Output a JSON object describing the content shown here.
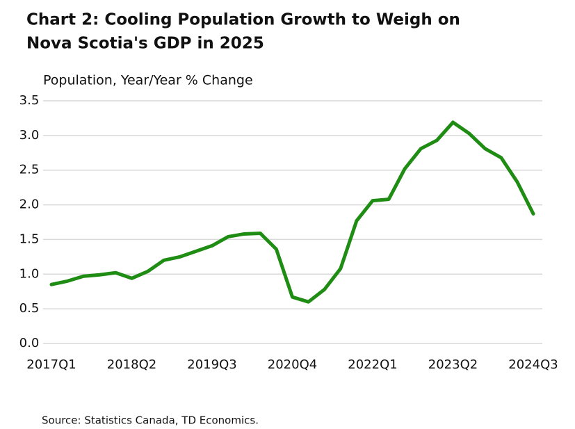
{
  "chart_data": {
    "type": "line",
    "title": [
      "Chart 2: Cooling Population Growth to Weigh on",
      "Nova Scotia's GDP in 2025"
    ],
    "y_label": "Population, Year/Year % Change",
    "source": "Source: Statistics Canada, TD Economics.",
    "categories": [
      "2017Q1",
      null,
      null,
      null,
      null,
      "2018Q2",
      null,
      null,
      null,
      null,
      "2019Q3",
      null,
      null,
      null,
      null,
      "2020Q4",
      null,
      null,
      null,
      null,
      "2022Q1",
      null,
      null,
      null,
      null,
      "2023Q2",
      null,
      null,
      null,
      null,
      "2024Q3"
    ],
    "series": [
      {
        "name": "Population",
        "color": "#1f8c14",
        "values": [
          0.85,
          0.9,
          0.97,
          0.99,
          1.02,
          0.94,
          1.04,
          1.2,
          1.25,
          1.33,
          1.41,
          1.54,
          1.58,
          1.59,
          1.36,
          0.67,
          0.6,
          0.78,
          1.08,
          1.77,
          2.06,
          2.08,
          2.52,
          2.81,
          2.93,
          3.19,
          3.03,
          2.81,
          2.68,
          2.33,
          1.87
        ]
      }
    ],
    "ylim": [
      0,
      3.5
    ],
    "yticks": [
      {
        "value": 0,
        "label": "0.0"
      },
      0.5,
      {
        "value": 1,
        "label": "1.0"
      },
      1.5,
      {
        "value": 2,
        "label": "2.0"
      },
      2.5,
      {
        "value": 3,
        "label": "3.0"
      },
      3.5
    ],
    "grid": true
  }
}
